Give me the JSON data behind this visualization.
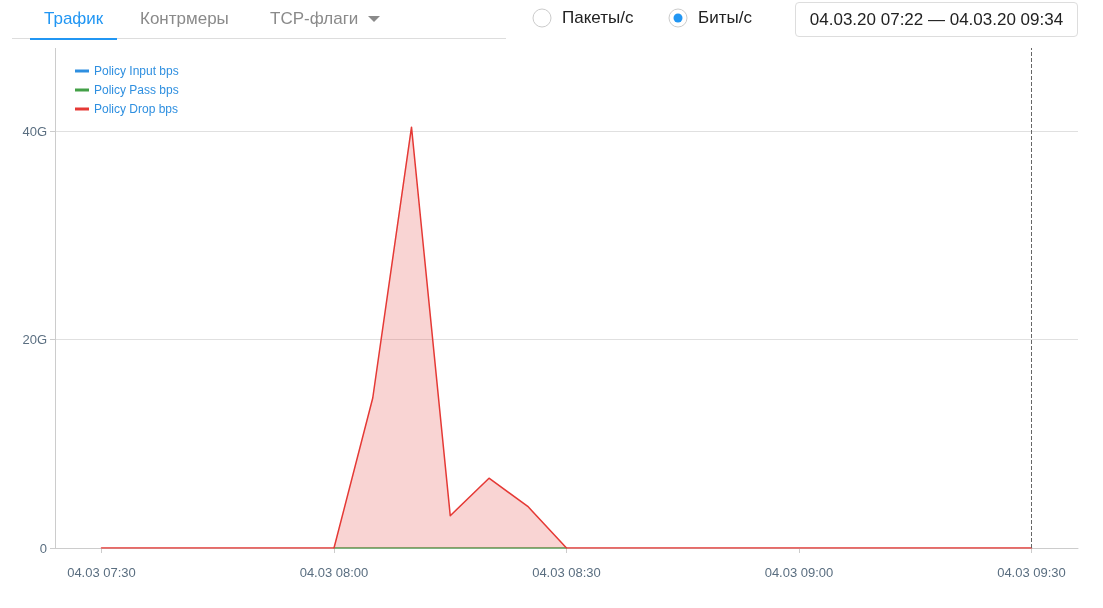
{
  "chart_data": {
    "type": "line",
    "annotations": [
      "Трафик",
      "Контрмеры",
      "TCP-флаги",
      "Пакеты/с",
      "Биты/с",
      "04.03.20 07:22 — 04.03.20 09:34"
    ],
    "x": [
      "--03-04T07:30",
      "--03-04T07:35",
      "--03-04T07:40",
      "--03-04T07:45",
      "--03-04T07:50",
      "--03-04T07:55",
      "--03-04T08:00",
      "--03-04T08:05",
      "--03-04T08:10",
      "--03-04T08:15",
      "--03-04T08:20",
      "--03-04T08:25",
      "--03-04T08:30",
      "--03-04T08:35",
      "--03-04T08:40",
      "--03-04T08:45",
      "--03-04T08:50",
      "--03-04T08:55",
      "--03-04T09:00",
      "--03-04T09:05",
      "--03-04T09:10",
      "--03-04T09:15",
      "--03-04T09:20",
      "--03-04T09:25",
      "--03-04T09:30"
    ],
    "series": [
      {
        "name": "Policy Input bps",
        "color": "#2e8fe0",
        "values": [
          null,
          null,
          null,
          null,
          null,
          null,
          null,
          null,
          null,
          null,
          null,
          null,
          null,
          null,
          null,
          null,
          null,
          null,
          null,
          null,
          null,
          null,
          null,
          null,
          null
        ]
      },
      {
        "name": "Policy Pass bps",
        "color": "#43a047",
        "values": [
          null,
          null,
          null,
          null,
          null,
          null,
          0,
          0,
          0,
          0,
          0,
          0,
          0,
          null,
          null,
          null,
          null,
          null,
          null,
          null,
          null,
          null,
          null,
          null,
          null
        ]
      },
      {
        "name": "Policy Drop bps",
        "type": "area",
        "color": "#e53935",
        "values": [
          0,
          0,
          0,
          0,
          0,
          0,
          0,
          14.4,
          40.4,
          3.1,
          6.7,
          4.0,
          0,
          0,
          0,
          0,
          0,
          0,
          0,
          0,
          0,
          0,
          0,
          0,
          0
        ]
      }
    ],
    "xlim": [
      "--03-04T07:24",
      "--03-04T09:36"
    ],
    "xticks": [
      {
        "value": "--03-04T07:30",
        "label": "04.03 07:30"
      },
      {
        "value": "--03-04T08:00",
        "label": "04.03 08:00"
      },
      {
        "value": "--03-04T08:30",
        "label": "04.03 08:30"
      },
      {
        "value": "--03-04T09:00",
        "label": "04.03 09:00"
      },
      {
        "value": "--03-04T09:30",
        "label": "04.03 09:30"
      }
    ],
    "ylim": [
      0,
      48
    ],
    "yticks": [
      0,
      {
        "value": 20,
        "label": "20G"
      },
      {
        "value": 40,
        "label": "40G"
      }
    ],
    "ref_lines": [
      {
        "axis": "x",
        "value": "--03-04T09:30",
        "color": "#666666",
        "line_style": "dashed"
      }
    ],
    "grid": "y",
    "legend": "top left",
    "marker": "none",
    "line_style": "solid"
  }
}
